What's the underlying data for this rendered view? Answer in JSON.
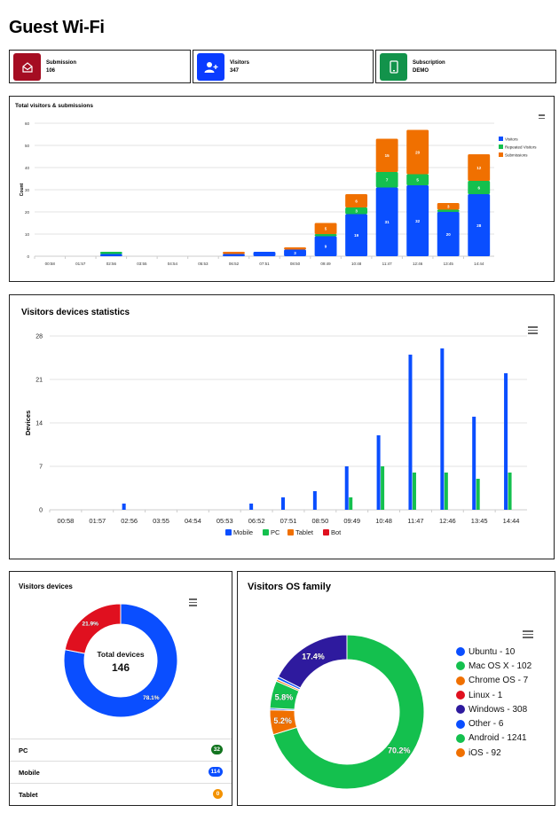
{
  "page": {
    "title": "Guest Wi-Fi"
  },
  "stats": [
    {
      "label": "Submission",
      "value": "106",
      "icon": "envelope-open-icon",
      "color": "#a50d22"
    },
    {
      "label": "Visitors",
      "value": "347",
      "icon": "user-plus-icon",
      "color": "#0a3cff"
    },
    {
      "label": "Subscription",
      "value": "DEMO",
      "icon": "mobile-phone-icon",
      "color": "#12934b"
    }
  ],
  "colors": {
    "blue": "#0a4eff",
    "green": "#14c04e",
    "orange": "#f07000",
    "red": "#e0101f",
    "purple": "#2e1a9e",
    "darkgreen": "#12741f",
    "amber": "#f39200"
  },
  "chart_data": [
    {
      "type": "bar",
      "stacked": true,
      "title": "Total visitors & submissions",
      "xlabel": "",
      "ylabel": "Count",
      "ylim": [
        0,
        60
      ],
      "yticks": [
        0,
        10,
        20,
        30,
        40,
        50,
        60
      ],
      "grid": true,
      "legend": "right",
      "categories": [
        "00:58",
        "01:57",
        "02:56",
        "03:55",
        "04:54",
        "05:53",
        "06:52",
        "07:51",
        "08:50",
        "09:49",
        "10:48",
        "11:47",
        "12:46",
        "13:45",
        "14:44"
      ],
      "series": [
        {
          "name": "Visitors",
          "color": "#0a4eff",
          "values": [
            0,
            0,
            1,
            0,
            0,
            0,
            1,
            2,
            3,
            9,
            19,
            31,
            32,
            20,
            28
          ]
        },
        {
          "name": "Repeated Visitors",
          "color": "#14c04e",
          "values": [
            0,
            0,
            1,
            0,
            0,
            0,
            0,
            0,
            0,
            1,
            3,
            7,
            5,
            1,
            6
          ]
        },
        {
          "name": "Submissions",
          "color": "#f07000",
          "values": [
            0,
            0,
            0,
            0,
            0,
            0,
            1,
            0,
            1,
            5,
            6,
            15,
            20,
            3,
            12
          ]
        }
      ]
    },
    {
      "type": "bar",
      "stacked": false,
      "title": "Visitors devices statistics",
      "xlabel": "",
      "ylabel": "Devices",
      "ylim": [
        0,
        28
      ],
      "yticks": [
        0,
        7,
        14,
        21,
        28
      ],
      "grid": true,
      "legend": "bottom",
      "categories": [
        "00:58",
        "01:57",
        "02:56",
        "03:55",
        "04:54",
        "05:53",
        "06:52",
        "07:51",
        "08:50",
        "09:49",
        "10:48",
        "11:47",
        "12:46",
        "13:45",
        "14:44"
      ],
      "series": [
        {
          "name": "Mobile",
          "color": "#0a4eff",
          "values": [
            0,
            0,
            1,
            0,
            0,
            0,
            1,
            2,
            3,
            7,
            12,
            25,
            26,
            15,
            22
          ]
        },
        {
          "name": "PC",
          "color": "#14c04e",
          "values": [
            0,
            0,
            0,
            0,
            0,
            0,
            0,
            0,
            0,
            2,
            7,
            6,
            6,
            5,
            6
          ]
        },
        {
          "name": "Tablet",
          "color": "#f07000",
          "values": [
            0,
            0,
            0,
            0,
            0,
            0,
            0,
            0,
            0,
            0,
            0,
            0,
            0,
            0,
            0
          ]
        },
        {
          "name": "Bot",
          "color": "#e0101f",
          "values": [
            0,
            0,
            0,
            0,
            0,
            0,
            0,
            0,
            0,
            0,
            0,
            0,
            0,
            0,
            0
          ]
        }
      ]
    },
    {
      "type": "pie",
      "donut": true,
      "title": "Visitors devices",
      "center_label": "Total devices",
      "center_value": "146",
      "slices": [
        {
          "name": "Mobile",
          "value": 114,
          "label": "78.1%",
          "color": "#0a4eff"
        },
        {
          "name": "PC",
          "value": 32,
          "label": "21.9%",
          "color": "#e0101f"
        },
        {
          "name": "Tablet",
          "value": 0,
          "label": "",
          "color": "#f07000"
        }
      ]
    },
    {
      "type": "pie",
      "donut": true,
      "title": "Visitors OS family",
      "legend": "right",
      "slices": [
        {
          "name": "Ubuntu",
          "value": 10,
          "legend": "Ubuntu - 10",
          "label": "",
          "color": "#0a4eff"
        },
        {
          "name": "Mac OS X",
          "value": 102,
          "legend": "Mac OS X - 102",
          "label": "5.8%",
          "color": "#14c04e"
        },
        {
          "name": "Chrome OS",
          "value": 7,
          "legend": "Chrome OS - 7",
          "label": "",
          "color": "#f07000"
        },
        {
          "name": "Linux",
          "value": 1,
          "legend": "Linux - 1",
          "label": "",
          "color": "#e0101f"
        },
        {
          "name": "Windows",
          "value": 308,
          "legend": "Windows - 308",
          "label": "17.4%",
          "color": "#2e1a9e"
        },
        {
          "name": "Other",
          "value": 6,
          "legend": "Other - 6",
          "label": "",
          "color": "#0a4eff"
        },
        {
          "name": "Android",
          "value": 1241,
          "legend": "Android - 1241",
          "label": "70.2%",
          "color": "#14c04e"
        },
        {
          "name": "iOS",
          "value": 92,
          "legend": "iOS - 92",
          "label": "5.2%",
          "color": "#f07000"
        }
      ]
    }
  ],
  "device_list": [
    {
      "name": "PC",
      "count": "32",
      "color": "#12741f"
    },
    {
      "name": "Mobile",
      "count": "114",
      "color": "#0a4eff"
    },
    {
      "name": "Tablet",
      "count": "0",
      "color": "#f39200"
    }
  ]
}
